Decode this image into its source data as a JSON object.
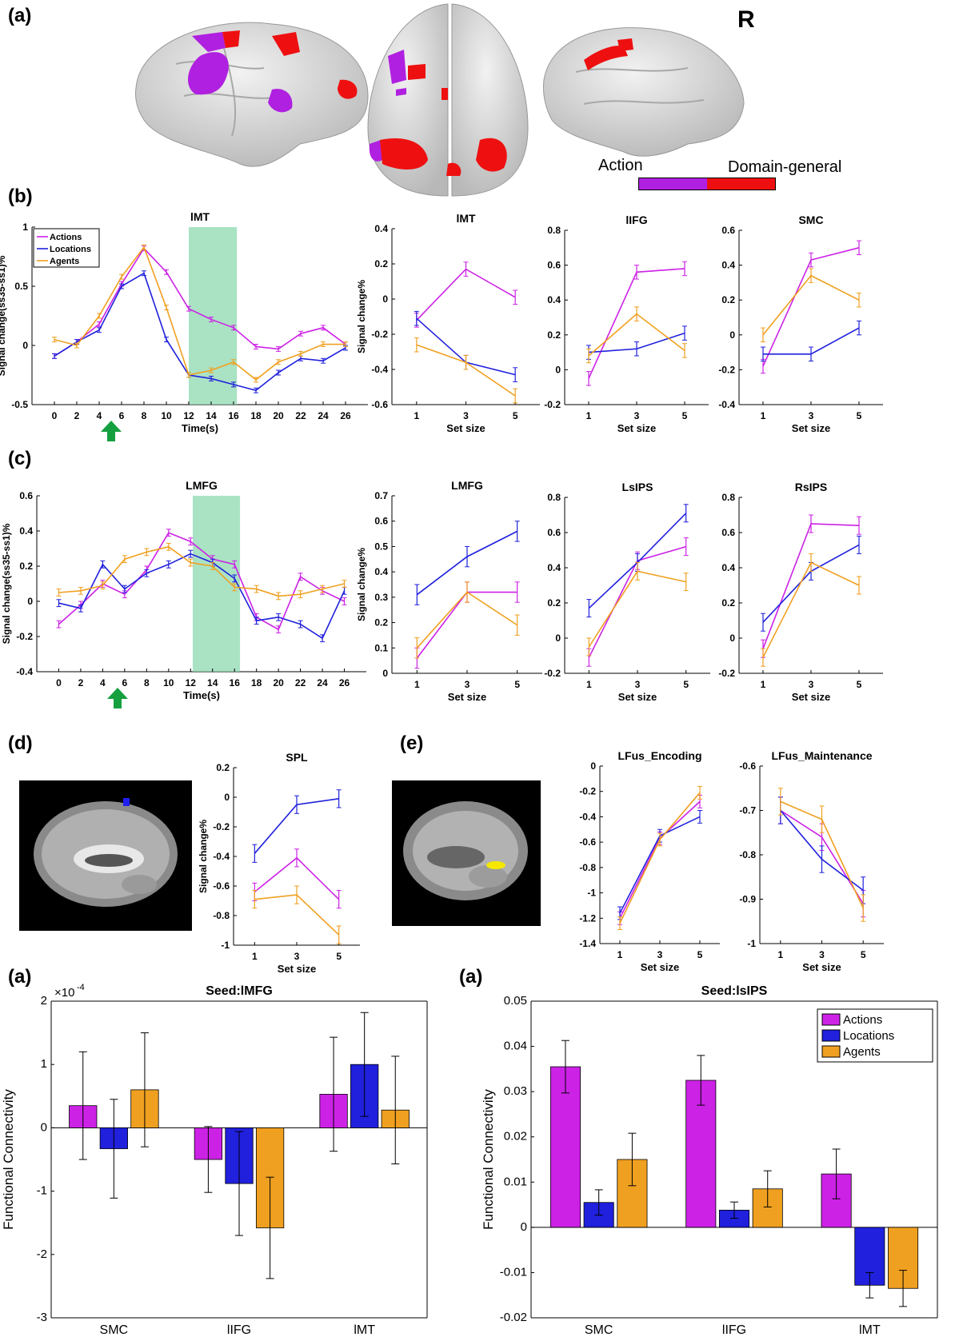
{
  "panel_labels": {
    "a_top": "(a)",
    "b": "(b)",
    "c": "(c)",
    "d": "(d)",
    "e": "(e)",
    "a_bottom_left": "(a)",
    "a_bottom_right": "(a)"
  },
  "brain_views": {
    "hemisphere_label": "R",
    "colorbar_left": "Action",
    "colorbar_right": "Domain-general",
    "colors": {
      "action": "#b020e0",
      "domain_general": "#ee1010",
      "surface": "#d8d8d8"
    }
  },
  "series_colors": {
    "Actions": "#cc22e6",
    "Locations": "#2020dd",
    "Agents": "#f0a020"
  },
  "chart_data": [
    {
      "id": "b_time",
      "type": "line",
      "title": "lMT",
      "xlabel": "Time(s)",
      "ylabel": "Signal change(ss35-ss1)%",
      "x": [
        0,
        2,
        4,
        6,
        8,
        10,
        12,
        14,
        16,
        18,
        20,
        22,
        24,
        26
      ],
      "xticks": [
        "0",
        "2",
        "4",
        "6",
        "8",
        "10",
        "12",
        "14",
        "16",
        "18",
        "20",
        "22",
        "24",
        "26"
      ],
      "xlim": [
        -2,
        28
      ],
      "ylim": [
        -0.5,
        1
      ],
      "yticks": [
        -0.5,
        0,
        0.5,
        1
      ],
      "ytick_labels": [
        "-0.5",
        "0",
        "0.5",
        "1"
      ],
      "shade": [
        12,
        16.3
      ],
      "legend": [
        "Actions",
        "Locations",
        "Agents"
      ],
      "series": [
        {
          "name": "Actions",
          "values": [
            -0.09,
            0.03,
            0.18,
            0.52,
            0.82,
            0.62,
            0.31,
            0.22,
            0.15,
            -0.01,
            -0.03,
            0.1,
            0.15,
            0.01
          ],
          "err": 0.02
        },
        {
          "name": "Locations",
          "values": [
            -0.09,
            0.03,
            0.13,
            0.5,
            0.61,
            0.05,
            -0.25,
            -0.28,
            -0.33,
            -0.38,
            -0.23,
            -0.11,
            -0.13,
            -0.02
          ],
          "err": 0.02
        },
        {
          "name": "Agents",
          "values": [
            0.05,
            0.0,
            0.25,
            0.58,
            0.83,
            0.32,
            -0.25,
            -0.21,
            -0.14,
            -0.29,
            -0.14,
            -0.07,
            0.01,
            0.01
          ],
          "err": 0.02
        }
      ]
    },
    {
      "id": "b_lMT",
      "type": "line",
      "title": "lMT",
      "xlabel": "Set size",
      "ylabel": "Signal change%",
      "x": [
        1,
        3,
        5
      ],
      "xticks": [
        "1",
        "3",
        "5"
      ],
      "xlim": [
        0,
        6
      ],
      "ylim": [
        -0.6,
        0.4
      ],
      "yticks": [
        -0.6,
        -0.4,
        -0.2,
        0,
        0.2,
        0.4
      ],
      "ytick_labels": [
        "-0.6",
        "-0.4",
        "-0.2",
        "0",
        "0.2",
        "0.4"
      ],
      "series": [
        {
          "name": "Actions",
          "values": [
            -0.12,
            0.17,
            0.01
          ],
          "err": 0.04
        },
        {
          "name": "Locations",
          "values": [
            -0.11,
            -0.36,
            -0.43
          ],
          "err": 0.04
        },
        {
          "name": "Agents",
          "values": [
            -0.26,
            -0.36,
            -0.55
          ],
          "err": 0.04
        }
      ]
    },
    {
      "id": "b_lIFG",
      "type": "line",
      "title": "lIFG",
      "xlabel": "Set size",
      "ylabel": "",
      "x": [
        1,
        3,
        5
      ],
      "xticks": [
        "1",
        "3",
        "5"
      ],
      "xlim": [
        0,
        6
      ],
      "ylim": [
        -0.2,
        0.8
      ],
      "yticks": [
        -0.2,
        0,
        0.2,
        0.4,
        0.6,
        0.8
      ],
      "ytick_labels": [
        "-0.2",
        "0",
        "0.2",
        "0.4",
        "0.6",
        "0.8"
      ],
      "series": [
        {
          "name": "Actions",
          "values": [
            -0.05,
            0.56,
            0.58
          ],
          "err": 0.04
        },
        {
          "name": "Locations",
          "values": [
            0.1,
            0.12,
            0.21
          ],
          "err": 0.04
        },
        {
          "name": "Agents",
          "values": [
            0.08,
            0.32,
            0.11
          ],
          "err": 0.04
        }
      ]
    },
    {
      "id": "b_SMC",
      "type": "line",
      "title": "SMC",
      "xlabel": "Set size",
      "ylabel": "",
      "x": [
        1,
        3,
        5
      ],
      "xticks": [
        "1",
        "3",
        "5"
      ],
      "xlim": [
        0,
        6
      ],
      "ylim": [
        -0.4,
        0.6
      ],
      "yticks": [
        -0.4,
        -0.2,
        0,
        0.2,
        0.4,
        0.6
      ],
      "ytick_labels": [
        "-0.4",
        "-0.2",
        "0",
        "0.2",
        "0.4",
        "0.6"
      ],
      "series": [
        {
          "name": "Actions",
          "values": [
            -0.18,
            0.43,
            0.5
          ],
          "err": 0.04
        },
        {
          "name": "Locations",
          "values": [
            -0.11,
            -0.11,
            0.04
          ],
          "err": 0.04
        },
        {
          "name": "Agents",
          "values": [
            0.0,
            0.34,
            0.2
          ],
          "err": 0.04
        }
      ]
    },
    {
      "id": "c_time",
      "type": "line",
      "title": "LMFG",
      "xlabel": "Time(s)",
      "ylabel": "Signal change(ss35-ss1)%",
      "x": [
        0,
        2,
        4,
        6,
        8,
        10,
        12,
        14,
        16,
        18,
        20,
        22,
        24,
        26
      ],
      "xticks": [
        "0",
        "2",
        "4",
        "6",
        "8",
        "10",
        "12",
        "14",
        "16",
        "18",
        "20",
        "22",
        "24",
        "26"
      ],
      "xlim": [
        -2,
        28
      ],
      "ylim": [
        -0.4,
        0.6
      ],
      "yticks": [
        -0.4,
        -0.2,
        0,
        0.2,
        0.4,
        0.6
      ],
      "ytick_labels": [
        "-0.4",
        "-0.2",
        "0",
        "0.2",
        "0.4",
        "0.6"
      ],
      "shade": [
        12.2,
        16.5
      ],
      "series": [
        {
          "name": "Actions",
          "values": [
            -0.13,
            -0.02,
            0.1,
            0.04,
            0.18,
            0.39,
            0.34,
            0.24,
            0.21,
            -0.09,
            -0.16,
            0.14,
            0.06,
            0.0
          ],
          "err": 0.02
        },
        {
          "name": "Locations",
          "values": [
            -0.01,
            -0.04,
            0.21,
            0.07,
            0.16,
            0.21,
            0.27,
            0.22,
            0.13,
            -0.11,
            -0.09,
            -0.13,
            -0.21,
            0.06
          ],
          "err": 0.02
        },
        {
          "name": "Agents",
          "values": [
            0.05,
            0.06,
            0.09,
            0.24,
            0.28,
            0.31,
            0.22,
            0.2,
            0.08,
            0.07,
            0.03,
            0.04,
            0.07,
            0.1
          ],
          "err": 0.02
        }
      ]
    },
    {
      "id": "c_LMFG",
      "type": "line",
      "title": "LMFG",
      "xlabel": "Set size",
      "ylabel": "Signal change%",
      "x": [
        1,
        3,
        5
      ],
      "xticks": [
        "1",
        "3",
        "5"
      ],
      "xlim": [
        0,
        6
      ],
      "ylim": [
        0,
        0.7
      ],
      "yticks": [
        0,
        0.1,
        0.2,
        0.3,
        0.4,
        0.5,
        0.6,
        0.7
      ],
      "ytick_labels": [
        "0",
        "0.1",
        "0.2",
        "0.3",
        "0.4",
        "0.5",
        "0.6",
        "0.7"
      ],
      "series": [
        {
          "name": "Actions",
          "values": [
            0.06,
            0.32,
            0.32
          ],
          "err": 0.04
        },
        {
          "name": "Locations",
          "values": [
            0.31,
            0.46,
            0.56
          ],
          "err": 0.04
        },
        {
          "name": "Agents",
          "values": [
            0.1,
            0.32,
            0.19
          ],
          "err": 0.04
        }
      ]
    },
    {
      "id": "c_LsIPS",
      "type": "line",
      "title": "LsIPS",
      "xlabel": "Set size",
      "ylabel": "",
      "x": [
        1,
        3,
        5
      ],
      "xticks": [
        "1",
        "3",
        "5"
      ],
      "xlim": [
        0,
        6
      ],
      "ylim": [
        -0.2,
        0.8
      ],
      "yticks": [
        -0.2,
        0,
        0.2,
        0.4,
        0.6,
        0.8
      ],
      "ytick_labels": [
        "-0.2",
        "0",
        "0.2",
        "0.4",
        "0.6",
        "0.8"
      ],
      "series": [
        {
          "name": "Actions",
          "values": [
            -0.11,
            0.44,
            0.52
          ],
          "err": 0.05
        },
        {
          "name": "Locations",
          "values": [
            0.17,
            0.43,
            0.71
          ],
          "err": 0.05
        },
        {
          "name": "Agents",
          "values": [
            -0.05,
            0.38,
            0.32
          ],
          "err": 0.05
        }
      ]
    },
    {
      "id": "c_RsIPS",
      "type": "line",
      "title": "RsIPS",
      "xlabel": "Set size",
      "ylabel": "",
      "x": [
        1,
        3,
        5
      ],
      "xticks": [
        "1",
        "3",
        "5"
      ],
      "xlim": [
        0,
        6
      ],
      "ylim": [
        -0.2,
        0.8
      ],
      "yticks": [
        -0.2,
        0,
        0.2,
        0.4,
        0.6,
        0.8
      ],
      "ytick_labels": [
        "-0.2",
        "0",
        "0.2",
        "0.4",
        "0.6",
        "0.8"
      ],
      "series": [
        {
          "name": "Actions",
          "values": [
            -0.06,
            0.65,
            0.64
          ],
          "err": 0.05
        },
        {
          "name": "Locations",
          "values": [
            0.09,
            0.38,
            0.53
          ],
          "err": 0.05
        },
        {
          "name": "Agents",
          "values": [
            -0.11,
            0.43,
            0.3
          ],
          "err": 0.05
        }
      ]
    },
    {
      "id": "d_SPL",
      "type": "line",
      "title": "SPL",
      "xlabel": "Set size",
      "ylabel": "Signal change%",
      "x": [
        1,
        3,
        5
      ],
      "xticks": [
        "1",
        "3",
        "5"
      ],
      "xlim": [
        0,
        6
      ],
      "ylim": [
        -1,
        0.2
      ],
      "yticks": [
        -1,
        -0.8,
        -0.6,
        -0.4,
        -0.2,
        0,
        0.2
      ],
      "ytick_labels": [
        "-1",
        "-0.8",
        "-0.6",
        "-0.4",
        "-0.2",
        "0",
        "0.2"
      ],
      "series": [
        {
          "name": "Actions",
          "values": [
            -0.64,
            -0.41,
            -0.69
          ],
          "err": 0.06
        },
        {
          "name": "Locations",
          "values": [
            -0.38,
            -0.05,
            -0.01
          ],
          "err": 0.06
        },
        {
          "name": "Agents",
          "values": [
            -0.69,
            -0.66,
            -0.93
          ],
          "err": 0.06
        }
      ]
    },
    {
      "id": "e_enc",
      "type": "line",
      "title": "LFus_Encoding",
      "xlabel": "Set size",
      "ylabel": "",
      "x": [
        1,
        3,
        5
      ],
      "xticks": [
        "1",
        "3",
        "5"
      ],
      "xlim": [
        0,
        6
      ],
      "ylim": [
        -1.4,
        0
      ],
      "yticks": [
        -1.4,
        -1.2,
        -1,
        -0.8,
        -0.6,
        -0.4,
        -0.2,
        0
      ],
      "ytick_labels": [
        "-1.4",
        "-1.2",
        "-1",
        "-0.8",
        "-0.6",
        "-0.4",
        "-0.2",
        "0"
      ],
      "series": [
        {
          "name": "Actions",
          "values": [
            -1.2,
            -0.57,
            -0.28
          ],
          "err": 0.05
        },
        {
          "name": "Locations",
          "values": [
            -1.16,
            -0.55,
            -0.4
          ],
          "err": 0.05
        },
        {
          "name": "Agents",
          "values": [
            -1.24,
            -0.58,
            -0.21
          ],
          "err": 0.05
        }
      ]
    },
    {
      "id": "e_maint",
      "type": "line",
      "title": "LFus_Maintenance",
      "xlabel": "Set size",
      "ylabel": "",
      "x": [
        1,
        3,
        5
      ],
      "xticks": [
        "1",
        "3",
        "5"
      ],
      "xlim": [
        0,
        6
      ],
      "ylim": [
        -1,
        -0.6
      ],
      "yticks": [
        -1,
        -0.9,
        -0.8,
        -0.7,
        -0.6
      ],
      "ytick_labels": [
        "-1",
        "-0.9",
        "-0.8",
        "-0.7",
        "-0.6"
      ],
      "series": [
        {
          "name": "Actions",
          "values": [
            -0.7,
            -0.76,
            -0.91
          ],
          "err": 0.03
        },
        {
          "name": "Locations",
          "values": [
            -0.7,
            -0.81,
            -0.88
          ],
          "err": 0.03
        },
        {
          "name": "Agents",
          "values": [
            -0.68,
            -0.72,
            -0.92
          ],
          "err": 0.03
        }
      ]
    },
    {
      "id": "bar_lMFG",
      "type": "bar",
      "title": "Seed:lMFG",
      "ylabel": "Functional Connectivity",
      "exponent_label": "×10",
      "exponent_value": "-4",
      "categories": [
        "SMC",
        "lIFG",
        "lMT"
      ],
      "ylim": [
        -3,
        2
      ],
      "yticks": [
        -3,
        -2,
        -1,
        0,
        1,
        2
      ],
      "ytick_labels": [
        "-3",
        "-2",
        "-1",
        "0",
        "1",
        "2"
      ],
      "series": [
        {
          "name": "Actions",
          "values": [
            0.35,
            -0.5,
            0.53
          ],
          "err": [
            0.85,
            0.52,
            0.9
          ]
        },
        {
          "name": "Locations",
          "values": [
            -0.33,
            -0.88,
            1.0
          ],
          "err": [
            0.78,
            0.82,
            0.82
          ]
        },
        {
          "name": "Agents",
          "values": [
            0.6,
            -1.58,
            0.28
          ],
          "err": [
            0.9,
            0.8,
            0.85
          ]
        }
      ]
    },
    {
      "id": "bar_lsIPS",
      "type": "bar",
      "title": "Seed:lsIPS",
      "ylabel": "Functional Connectivity",
      "categories": [
        "SMC",
        "lIFG",
        "lMT"
      ],
      "ylim": [
        -0.02,
        0.05
      ],
      "yticks": [
        -0.02,
        -0.01,
        0,
        0.01,
        0.02,
        0.03,
        0.04,
        0.05
      ],
      "ytick_labels": [
        "-0.02",
        "-0.01",
        "0",
        "0.01",
        "0.02",
        "0.03",
        "0.04",
        "0.05"
      ],
      "legend": [
        "Actions",
        "Locations",
        "Agents"
      ],
      "series": [
        {
          "name": "Actions",
          "values": [
            0.0355,
            0.0325,
            0.0118
          ],
          "err": [
            0.0058,
            0.0055,
            0.0055
          ]
        },
        {
          "name": "Locations",
          "values": [
            0.0055,
            0.0038,
            -0.0128
          ],
          "err": [
            0.0028,
            0.0018,
            0.0028
          ]
        },
        {
          "name": "Agents",
          "values": [
            0.015,
            0.0085,
            -0.0135
          ],
          "err": [
            0.0058,
            0.004,
            0.004
          ]
        }
      ]
    }
  ]
}
